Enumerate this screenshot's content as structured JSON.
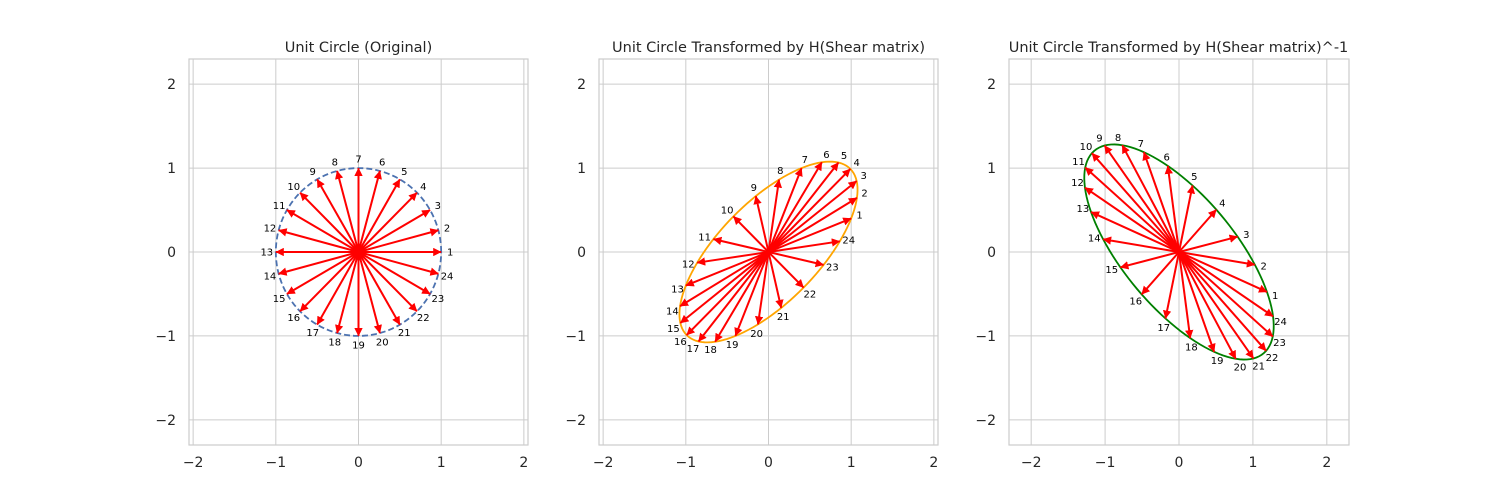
{
  "chart_data": [
    {
      "type": "vector-field",
      "title": "Unit Circle (Original)",
      "xlim": [
        -2.05,
        2.05
      ],
      "ylim": [
        -2.3,
        2.3
      ],
      "xticks": [
        -2,
        -1,
        0,
        1,
        2
      ],
      "yticks": [
        -2,
        -1,
        0,
        1,
        2
      ],
      "grid": true,
      "curve": {
        "style": "dashed",
        "color": "#4C72B0"
      },
      "arrow_color": "#FF0000",
      "matrix": [
        [
          1,
          0
        ],
        [
          0,
          1
        ]
      ],
      "vectors": [
        {
          "label": "1",
          "x": 1.0,
          "y": 0.0
        },
        {
          "label": "2",
          "x": 0.966,
          "y": 0.259
        },
        {
          "label": "3",
          "x": 0.866,
          "y": 0.5
        },
        {
          "label": "4",
          "x": 0.707,
          "y": 0.707
        },
        {
          "label": "5",
          "x": 0.5,
          "y": 0.866
        },
        {
          "label": "6",
          "x": 0.259,
          "y": 0.966
        },
        {
          "label": "7",
          "x": 0.0,
          "y": 1.0
        },
        {
          "label": "8",
          "x": -0.259,
          "y": 0.966
        },
        {
          "label": "9",
          "x": -0.5,
          "y": 0.866
        },
        {
          "label": "10",
          "x": -0.707,
          "y": 0.707
        },
        {
          "label": "11",
          "x": -0.866,
          "y": 0.5
        },
        {
          "label": "12",
          "x": -0.966,
          "y": 0.259
        },
        {
          "label": "13",
          "x": -1.0,
          "y": 0.0
        },
        {
          "label": "14",
          "x": -0.966,
          "y": -0.259
        },
        {
          "label": "15",
          "x": -0.866,
          "y": -0.5
        },
        {
          "label": "16",
          "x": -0.707,
          "y": -0.707
        },
        {
          "label": "17",
          "x": -0.5,
          "y": -0.866
        },
        {
          "label": "18",
          "x": -0.259,
          "y": -0.966
        },
        {
          "label": "19",
          "x": 0.0,
          "y": -1.0
        },
        {
          "label": "20",
          "x": 0.259,
          "y": -0.966
        },
        {
          "label": "21",
          "x": 0.5,
          "y": -0.866
        },
        {
          "label": "22",
          "x": 0.707,
          "y": -0.707
        },
        {
          "label": "23",
          "x": 0.866,
          "y": -0.5
        },
        {
          "label": "24",
          "x": 0.966,
          "y": -0.259
        }
      ]
    },
    {
      "type": "vector-field",
      "title": "Unit Circle Transformed by H(Shear matrix)",
      "xlim": [
        -2.05,
        2.05
      ],
      "ylim": [
        -2.3,
        2.3
      ],
      "xticks": [
        -2,
        -1,
        0,
        1,
        2
      ],
      "yticks": [
        -2,
        -1,
        0,
        1,
        2
      ],
      "grid": true,
      "curve": {
        "style": "solid",
        "color": "#FFA500"
      },
      "arrow_color": "#FF0000",
      "matrix": [
        [
          1,
          0.4
        ],
        [
          0.4,
          1
        ]
      ],
      "vectors": [
        {
          "label": "1",
          "x": 1.0,
          "y": 0.0
        },
        {
          "label": "2",
          "x": 0.966,
          "y": 0.259
        },
        {
          "label": "3",
          "x": 0.866,
          "y": 0.5
        },
        {
          "label": "4",
          "x": 0.707,
          "y": 0.707
        },
        {
          "label": "5",
          "x": 0.5,
          "y": 0.866
        },
        {
          "label": "6",
          "x": 0.259,
          "y": 0.966
        },
        {
          "label": "7",
          "x": 0.0,
          "y": 1.0
        },
        {
          "label": "8",
          "x": -0.259,
          "y": 0.966
        },
        {
          "label": "9",
          "x": -0.5,
          "y": 0.866
        },
        {
          "label": "10",
          "x": -0.707,
          "y": 0.707
        },
        {
          "label": "11",
          "x": -0.866,
          "y": 0.5
        },
        {
          "label": "12",
          "x": -0.966,
          "y": 0.259
        },
        {
          "label": "13",
          "x": -1.0,
          "y": 0.0
        },
        {
          "label": "14",
          "x": -0.966,
          "y": -0.259
        },
        {
          "label": "15",
          "x": -0.866,
          "y": -0.5
        },
        {
          "label": "16",
          "x": -0.707,
          "y": -0.707
        },
        {
          "label": "17",
          "x": -0.5,
          "y": -0.866
        },
        {
          "label": "18",
          "x": -0.259,
          "y": -0.966
        },
        {
          "label": "19",
          "x": 0.0,
          "y": -1.0
        },
        {
          "label": "20",
          "x": 0.259,
          "y": -0.966
        },
        {
          "label": "21",
          "x": 0.5,
          "y": -0.866
        },
        {
          "label": "22",
          "x": 0.707,
          "y": -0.707
        },
        {
          "label": "23",
          "x": 0.866,
          "y": -0.5
        },
        {
          "label": "24",
          "x": 0.966,
          "y": -0.259
        }
      ]
    },
    {
      "type": "vector-field",
      "title": "Unit Circle Transformed by H(Shear matrix)^-1",
      "xlim": [
        -2.3,
        2.3
      ],
      "ylim": [
        -2.3,
        2.3
      ],
      "xticks": [
        -2,
        -1,
        0,
        1,
        2
      ],
      "yticks": [
        -2,
        -1,
        0,
        1,
        2
      ],
      "grid": true,
      "curve": {
        "style": "solid",
        "color": "#008000"
      },
      "arrow_color": "#FF0000",
      "matrix": [
        [
          1.19,
          -0.476
        ],
        [
          -0.476,
          1.19
        ]
      ],
      "vectors": [
        {
          "label": "1",
          "x": 1.0,
          "y": 0.0
        },
        {
          "label": "2",
          "x": 0.966,
          "y": 0.259
        },
        {
          "label": "3",
          "x": 0.866,
          "y": 0.5
        },
        {
          "label": "4",
          "x": 0.707,
          "y": 0.707
        },
        {
          "label": "5",
          "x": 0.5,
          "y": 0.866
        },
        {
          "label": "6",
          "x": 0.259,
          "y": 0.966
        },
        {
          "label": "7",
          "x": 0.0,
          "y": 1.0
        },
        {
          "label": "8",
          "x": -0.259,
          "y": 0.966
        },
        {
          "label": "9",
          "x": -0.5,
          "y": 0.866
        },
        {
          "label": "10",
          "x": -0.707,
          "y": 0.707
        },
        {
          "label": "11",
          "x": -0.866,
          "y": 0.5
        },
        {
          "label": "12",
          "x": -0.966,
          "y": 0.259
        },
        {
          "label": "13",
          "x": -1.0,
          "y": 0.0
        },
        {
          "label": "14",
          "x": -0.966,
          "y": -0.259
        },
        {
          "label": "15",
          "x": -0.866,
          "y": -0.5
        },
        {
          "label": "16",
          "x": -0.707,
          "y": -0.707
        },
        {
          "label": "17",
          "x": -0.5,
          "y": -0.866
        },
        {
          "label": "18",
          "x": -0.259,
          "y": -0.966
        },
        {
          "label": "19",
          "x": 0.0,
          "y": -1.0
        },
        {
          "label": "20",
          "x": 0.259,
          "y": -0.966
        },
        {
          "label": "21",
          "x": 0.5,
          "y": -0.866
        },
        {
          "label": "22",
          "x": 0.707,
          "y": -0.707
        },
        {
          "label": "23",
          "x": 0.866,
          "y": -0.5
        },
        {
          "label": "24",
          "x": 0.966,
          "y": -0.259
        }
      ]
    }
  ]
}
